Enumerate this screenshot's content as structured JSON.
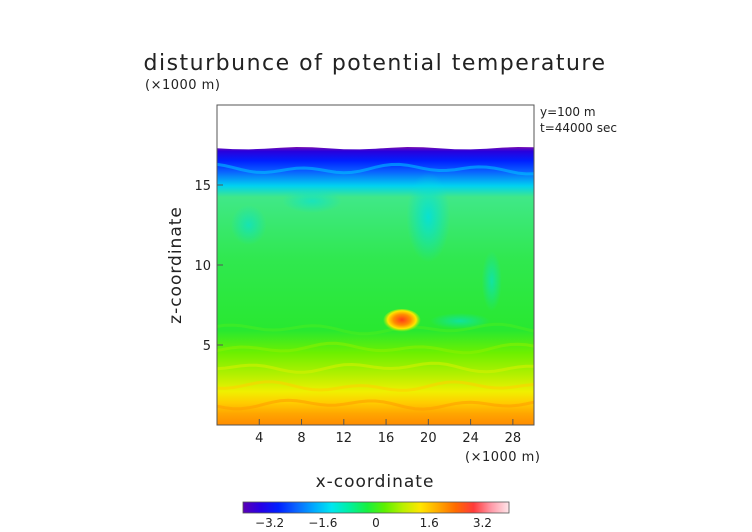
{
  "chart_data": {
    "type": "heatmap",
    "title": "disturbunce of potential temperature",
    "unit_note_top": "(×1000 m)",
    "unit_note_bottom": "(×1000 m)",
    "annotation_line1": "y=100 m",
    "annotation_line2": "t=44000 sec",
    "xlabel": "x-coordinate",
    "ylabel": "z-coordinate",
    "xlim": [
      0,
      30
    ],
    "ylim": [
      0,
      20
    ],
    "x_ticks": [
      4,
      8,
      12,
      16,
      20,
      24,
      28
    ],
    "y_ticks": [
      5,
      10,
      15
    ],
    "colorbar": {
      "range": [
        -4,
        4
      ],
      "tick_values": [
        -3.2,
        -1.6,
        0,
        1.6,
        3.2
      ],
      "tick_labels": [
        "−3.2",
        "−1.6",
        "0",
        "1.6",
        "3.2"
      ],
      "colors": [
        "#5a00b4",
        "#2600e6",
        "#0020ff",
        "#0a64ff",
        "#00aaff",
        "#00e6f0",
        "#00f0a0",
        "#18f040",
        "#5ef000",
        "#b8f000",
        "#ffe600",
        "#ffaa00",
        "#ff6a00",
        "#ff3a3a",
        "#ff9aa8",
        "#ffe6ea"
      ]
    },
    "field_top_z": 17.3,
    "description_bands": [
      {
        "z_from": 0,
        "z_to": 1.5,
        "value": 1.6
      },
      {
        "z_from": 1.5,
        "z_to": 3,
        "value": 0.9
      },
      {
        "z_from": 3,
        "z_to": 5,
        "value": 0.3
      },
      {
        "z_from": 5,
        "z_to": 15,
        "value": -0.4
      },
      {
        "z_from": 15,
        "z_to": 17.3,
        "value": -2.8
      }
    ],
    "features": [
      {
        "kind": "warm-bubble",
        "x": 17.5,
        "z": 6.5,
        "value": 2.4
      },
      {
        "kind": "cool-plume",
        "x": 20,
        "z": 13,
        "value": -0.9
      }
    ]
  }
}
